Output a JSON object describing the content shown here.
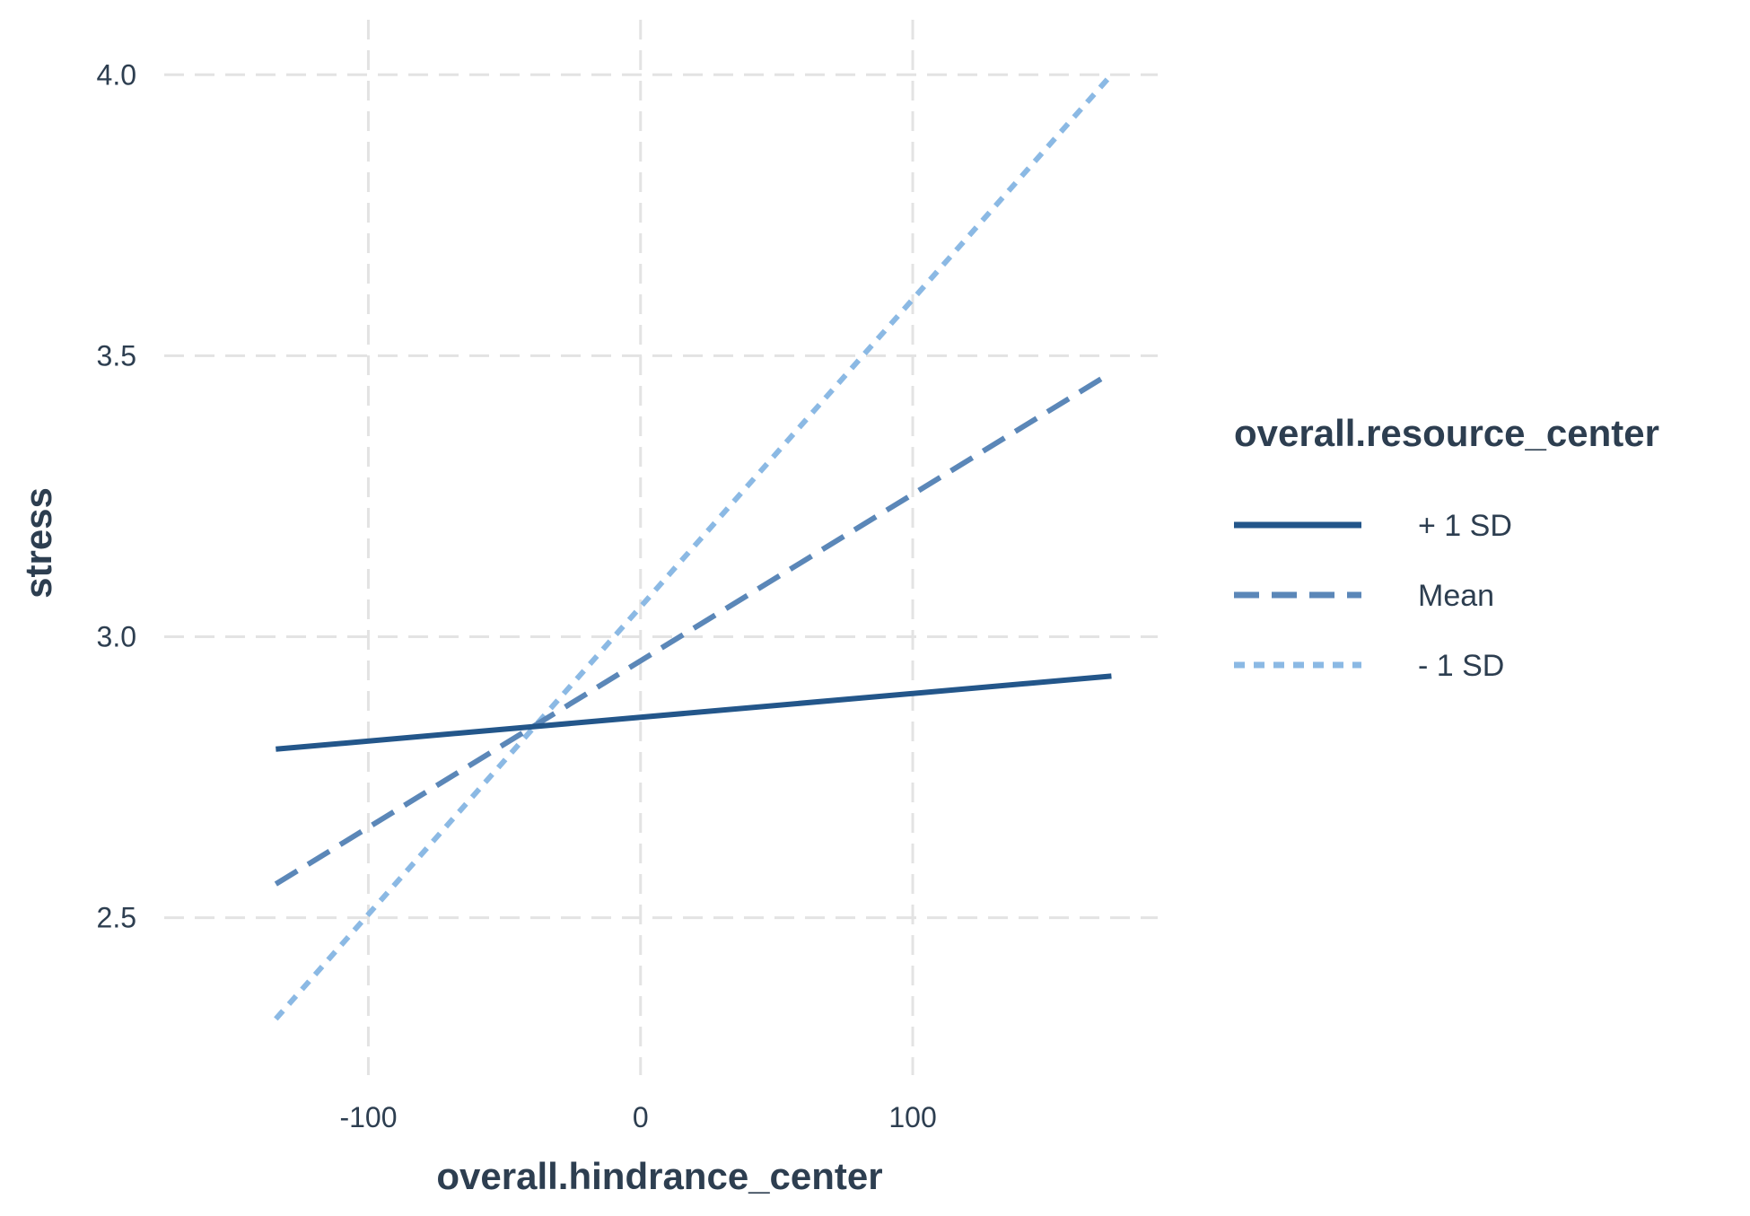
{
  "chart_data": {
    "type": "line",
    "title": "",
    "xlabel": "overall.hindrance_center",
    "ylabel": "stress",
    "xlim": [
      -175,
      190
    ],
    "ylim": [
      2.22,
      4.05
    ],
    "x_ticks": [
      -100,
      0,
      100
    ],
    "x_tick_labels": [
      "-100",
      "0",
      "100"
    ],
    "y_ticks": [
      2.5,
      3.0,
      3.5,
      4.0
    ],
    "y_tick_labels": [
      "2.5",
      "3.0",
      "3.5",
      "4.0"
    ],
    "grid": true,
    "legend": {
      "title": "overall.resource_center",
      "placement": "right"
    },
    "series": [
      {
        "name": "+ 1 SD",
        "color": "#23568a",
        "style": "solid",
        "x": [
          -134,
          173
        ],
        "y": [
          2.8,
          2.93
        ]
      },
      {
        "name": "Mean",
        "color": "#5b87b8",
        "style": "dashed",
        "x": [
          -134,
          173
        ],
        "y": [
          2.56,
          3.47
        ]
      },
      {
        "name": "- 1 SD",
        "color": "#8bb9e4",
        "style": "dotted",
        "x": [
          -134,
          173
        ],
        "y": [
          2.32,
          4.0
        ]
      }
    ]
  }
}
